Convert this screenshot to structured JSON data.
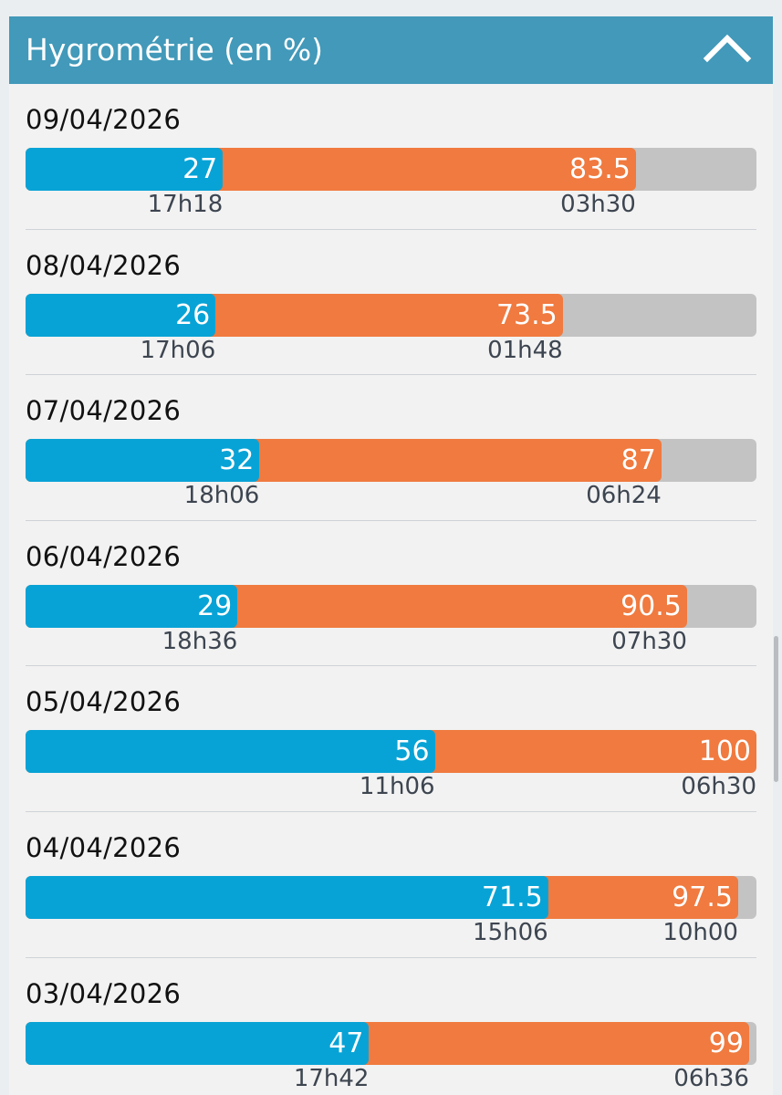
{
  "header": {
    "title": "Hygrométrie (en %)",
    "collapse_icon": "chevron-up-icon"
  },
  "colors": {
    "min": "#08a3d6",
    "max": "#f07a3f",
    "track": "#c3c3c3",
    "header": "#4299b9"
  },
  "chart_data": {
    "type": "bar",
    "ylim": [
      0,
      100
    ],
    "series": [
      {
        "name": "min"
      },
      {
        "name": "max"
      }
    ],
    "days": [
      {
        "date": "09/04/2026",
        "min": 27,
        "min_label": "27",
        "min_time": "17h18",
        "max": 83.5,
        "max_label": "83.5",
        "max_time": "03h30"
      },
      {
        "date": "08/04/2026",
        "min": 26,
        "min_label": "26",
        "min_time": "17h06",
        "max": 73.5,
        "max_label": "73.5",
        "max_time": "01h48"
      },
      {
        "date": "07/04/2026",
        "min": 32,
        "min_label": "32",
        "min_time": "18h06",
        "max": 87,
        "max_label": "87",
        "max_time": "06h24"
      },
      {
        "date": "06/04/2026",
        "min": 29,
        "min_label": "29",
        "min_time": "18h36",
        "max": 90.5,
        "max_label": "90.5",
        "max_time": "07h30"
      },
      {
        "date": "05/04/2026",
        "min": 56,
        "min_label": "56",
        "min_time": "11h06",
        "max": 100,
        "max_label": "100",
        "max_time": "06h30"
      },
      {
        "date": "04/04/2026",
        "min": 71.5,
        "min_label": "71.5",
        "min_time": "15h06",
        "max": 97.5,
        "max_label": "97.5",
        "max_time": "10h00"
      },
      {
        "date": "03/04/2026",
        "min": 47,
        "min_label": "47",
        "min_time": "17h42",
        "max": 99,
        "max_label": "99",
        "max_time": "06h36"
      }
    ]
  }
}
